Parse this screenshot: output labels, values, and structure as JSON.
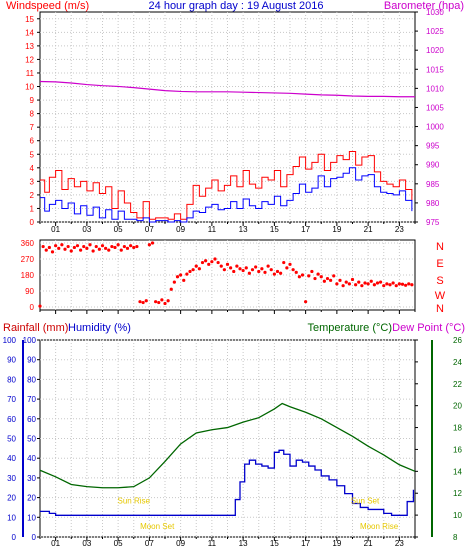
{
  "page_title": "24 hour graph day : 19 August 2016",
  "colors": {
    "windspeed": "#ff0000",
    "windspeed_avg": "#0000ff",
    "barometer": "#cc00cc",
    "direction": "#ff0000",
    "rainfall": "#cc0000",
    "humidity": "#0000cc",
    "temperature": "#006600",
    "dewpoint": "#cc00cc",
    "grid": "#c8c8c8",
    "axis": "#000000",
    "sun_moon": "#e6c800"
  },
  "hour_labels": [
    "01",
    "03",
    "05",
    "07",
    "09",
    "11",
    "13",
    "15",
    "17",
    "19",
    "21",
    "23"
  ],
  "chart_data": [
    {
      "type": "line",
      "title": "24 hour graph day : 19 August 2016",
      "ylabel": "Windspeed (m/s)",
      "y2label": "Barometer (hpa)",
      "x_unit": "hour of day",
      "xlim": [
        0,
        24
      ],
      "ylim": [
        0,
        15.5
      ],
      "y2lim": [
        975,
        1030
      ],
      "y_ticks": [
        0,
        1,
        2,
        3,
        4,
        5,
        6,
        7,
        8,
        9,
        10,
        11,
        12,
        13,
        14,
        15
      ],
      "y2_ticks": [
        975,
        980,
        985,
        990,
        995,
        1000,
        1005,
        1010,
        1015,
        1020,
        1025,
        1030
      ],
      "series": [
        {
          "name": "Windspeed",
          "axis": "left",
          "x": [
            0,
            0.3,
            0.6,
            1,
            1.4,
            1.8,
            2.2,
            2.6,
            3,
            3.4,
            3.8,
            4.2,
            4.6,
            5,
            5.4,
            5.8,
            6.2,
            6.6,
            7,
            7.4,
            7.8,
            8.2,
            8.6,
            9,
            9.4,
            9.8,
            10.2,
            10.6,
            11,
            11.4,
            11.8,
            12.2,
            12.6,
            13,
            13.4,
            13.8,
            14.2,
            14.6,
            15,
            15.4,
            15.8,
            16.2,
            16.6,
            17,
            17.4,
            17.8,
            18.2,
            18.6,
            19,
            19.4,
            19.8,
            20.2,
            20.6,
            21,
            21.4,
            21.8,
            22.2,
            22.6,
            23,
            23.4,
            23.8
          ],
          "values": [
            3.1,
            2.2,
            3.3,
            3.8,
            2.4,
            3.2,
            2.6,
            3.0,
            2.3,
            2.9,
            2.1,
            2.6,
            1.0,
            2.3,
            1.4,
            0.7,
            0.3,
            1.5,
            0.2,
            0.3,
            0.3,
            0.2,
            0.6,
            0.2,
            1.3,
            2.7,
            1.9,
            2.5,
            3.1,
            2.3,
            2.7,
            3.4,
            2.6,
            3.8,
            2.8,
            2.5,
            3.3,
            3.1,
            3.8,
            2.6,
            3.5,
            4.1,
            4.8,
            3.9,
            4.4,
            5.0,
            3.8,
            4.4,
            4.9,
            4.6,
            5.2,
            4.2,
            4.8,
            4.9,
            3.7,
            3.0,
            2.8,
            2.6,
            3.1,
            2.4,
            1.6
          ]
        },
        {
          "name": "Windspeed average",
          "axis": "left",
          "x": [
            0,
            0.3,
            0.6,
            1,
            1.4,
            1.8,
            2.2,
            2.6,
            3,
            3.4,
            3.8,
            4.2,
            4.6,
            5,
            5.4,
            5.8,
            6.2,
            6.6,
            7,
            7.4,
            7.8,
            8.2,
            8.6,
            9,
            9.4,
            9.8,
            10.2,
            10.6,
            11,
            11.4,
            11.8,
            12.2,
            12.6,
            13,
            13.4,
            13.8,
            14.2,
            14.6,
            15,
            15.4,
            15.8,
            16.2,
            16.6,
            17,
            17.4,
            17.8,
            18.2,
            18.6,
            19,
            19.4,
            19.8,
            20.2,
            20.6,
            21,
            21.4,
            21.8,
            22.2,
            22.6,
            23,
            23.4,
            23.8
          ],
          "values": [
            1.8,
            0.8,
            1.3,
            1.6,
            1.0,
            1.4,
            0.6,
            1.2,
            0.5,
            1.1,
            0.3,
            0.9,
            0.2,
            0.8,
            0.2,
            0.2,
            0.1,
            0.3,
            0.0,
            0.1,
            0.1,
            0.0,
            0.1,
            0.0,
            0.3,
            0.8,
            0.7,
            1.1,
            1.3,
            0.9,
            1.0,
            1.5,
            1.0,
            1.7,
            1.2,
            1.0,
            1.5,
            1.3,
            1.9,
            1.2,
            1.6,
            2.1,
            2.8,
            2.2,
            2.5,
            3.4,
            2.6,
            3.2,
            3.3,
            3.6,
            4.0,
            3.1,
            3.4,
            3.5,
            2.6,
            2.2,
            2.1,
            2.0,
            2.3,
            1.6,
            0.8
          ]
        },
        {
          "name": "Barometer",
          "axis": "right",
          "x": [
            0,
            1,
            2,
            3,
            4,
            5,
            6,
            7,
            8,
            9,
            10,
            11,
            12,
            13,
            14,
            15,
            16,
            17,
            18,
            19,
            20,
            21,
            22,
            23,
            24
          ],
          "values": [
            1011.8,
            1011.7,
            1011.4,
            1011.0,
            1010.7,
            1010.5,
            1010.2,
            1009.8,
            1009.4,
            1009.2,
            1009.1,
            1009.1,
            1009.1,
            1009.0,
            1008.9,
            1008.8,
            1008.7,
            1008.5,
            1008.3,
            1008.2,
            1008.0,
            1007.9,
            1007.9,
            1007.8,
            1007.8
          ]
        }
      ]
    },
    {
      "type": "scatter",
      "title": "",
      "ylabel": "",
      "x_unit": "hour of day",
      "xlim": [
        0,
        24
      ],
      "ylim": [
        0,
        360
      ],
      "y_ticks": [
        0,
        90,
        180,
        270,
        360
      ],
      "y2_labels": [
        "N",
        "W",
        "S",
        "E",
        "N"
      ],
      "series": [
        {
          "name": "Wind direction",
          "x": [
            0,
            0.2,
            0.4,
            0.6,
            0.8,
            1,
            1.2,
            1.4,
            1.6,
            1.8,
            2,
            2.2,
            2.4,
            2.6,
            2.8,
            3,
            3.2,
            3.4,
            3.6,
            3.8,
            4,
            4.2,
            4.4,
            4.6,
            4.8,
            5,
            5.2,
            5.4,
            5.6,
            5.8,
            6,
            6.2,
            6.4,
            6.6,
            6.8,
            7,
            7.2,
            7.4,
            7.6,
            7.8,
            8,
            8.2,
            8.4,
            8.6,
            8.8,
            9,
            9.2,
            9.4,
            9.6,
            9.8,
            10,
            10.2,
            10.4,
            10.6,
            10.8,
            11,
            11.2,
            11.4,
            11.6,
            11.8,
            12,
            12.2,
            12.4,
            12.6,
            12.8,
            13,
            13.2,
            13.4,
            13.6,
            13.8,
            14,
            14.2,
            14.4,
            14.6,
            14.8,
            15,
            15.2,
            15.4,
            15.6,
            15.8,
            16,
            16.2,
            16.4,
            16.6,
            16.8,
            17,
            17.2,
            17.4,
            17.6,
            17.8,
            18,
            18.2,
            18.4,
            18.6,
            18.8,
            19,
            19.2,
            19.4,
            19.6,
            19.8,
            20,
            20.2,
            20.4,
            20.6,
            20.8,
            21,
            21.2,
            21.4,
            21.6,
            21.8,
            22,
            22.2,
            22.4,
            22.6,
            22.8,
            23,
            23.2,
            23.4,
            23.6,
            23.8
          ],
          "values": [
            5,
            340,
            320,
            335,
            310,
            345,
            330,
            350,
            325,
            340,
            315,
            335,
            345,
            320,
            340,
            330,
            350,
            315,
            340,
            325,
            345,
            330,
            320,
            340,
            335,
            350,
            320,
            340,
            330,
            345,
            335,
            340,
            30,
            25,
            35,
            350,
            360,
            30,
            25,
            40,
            20,
            35,
            100,
            140,
            170,
            180,
            150,
            185,
            200,
            210,
            230,
            215,
            250,
            260,
            240,
            255,
            270,
            250,
            230,
            210,
            240,
            220,
            200,
            230,
            215,
            205,
            220,
            190,
            210,
            225,
            200,
            215,
            195,
            230,
            210,
            185,
            200,
            190,
            250,
            220,
            240,
            210,
            195,
            170,
            180,
            30,
            175,
            200,
            160,
            185,
            170,
            145,
            160,
            150,
            175,
            130,
            150,
            120,
            140,
            130,
            155,
            125,
            140,
            120,
            135,
            130,
            145,
            125,
            135,
            140,
            120,
            130,
            125,
            135,
            120,
            130,
            128,
            122,
            130,
            125
          ]
        }
      ]
    },
    {
      "type": "line",
      "title": "",
      "ylabel": "Rainfall (mm)",
      "ylabel2": "Humidity (%)",
      "y2label": "Temperature (°C)",
      "y2label2": "Dew Point (°C)",
      "x_unit": "hour of day",
      "xlim": [
        0,
        24
      ],
      "ylim": [
        0,
        100
      ],
      "y2lim": [
        8,
        26
      ],
      "y_ticks": [
        0,
        10,
        20,
        30,
        40,
        50,
        60,
        70,
        80,
        90,
        100
      ],
      "y2_ticks": [
        8,
        10,
        12,
        14,
        16,
        18,
        20,
        22,
        24,
        26
      ],
      "annotations": [
        {
          "text": "Sun Rise",
          "x": 6.0,
          "y": 17
        },
        {
          "text": "Moon Set",
          "x": 7.5,
          "y": 4
        },
        {
          "text": "Sun Set",
          "x": 20.8,
          "y": 17
        },
        {
          "text": "Moon Rise",
          "x": 21.7,
          "y": 4
        }
      ],
      "series": [
        {
          "name": "Humidity",
          "axis": "left",
          "x": [
            0,
            0.3,
            0.6,
            1,
            2,
            3,
            4,
            5,
            6,
            7,
            8,
            9,
            10,
            11,
            12,
            12.2,
            12.5,
            12.8,
            13.1,
            13.4,
            13.8,
            14.2,
            14.6,
            15,
            15.3,
            15.6,
            16,
            16.4,
            16.8,
            17.2,
            17.6,
            18,
            18.5,
            19,
            19.5,
            20,
            20.5,
            21,
            21.5,
            22,
            22.5,
            23,
            23.5,
            23.9
          ],
          "values": [
            13,
            13,
            12,
            11,
            11,
            11,
            11,
            11,
            11,
            11,
            11,
            11,
            11,
            11,
            11,
            11,
            19,
            28,
            37,
            39,
            37,
            36,
            35,
            43,
            44,
            42,
            36,
            39,
            38,
            36,
            34,
            31,
            29,
            26,
            22,
            17,
            15,
            14,
            14,
            12,
            11,
            11,
            18,
            24
          ]
        },
        {
          "name": "Temperature",
          "axis": "right",
          "x": [
            0,
            1,
            2,
            3,
            4,
            5,
            6,
            7,
            8,
            9,
            10,
            11,
            12,
            13,
            14,
            15,
            15.5,
            16,
            17,
            18,
            19,
            20,
            21,
            22,
            23,
            24
          ],
          "values": [
            14.1,
            13.5,
            12.8,
            12.6,
            12.5,
            12.5,
            12.6,
            13.4,
            14.9,
            16.5,
            17.5,
            17.8,
            18.0,
            18.5,
            18.9,
            19.7,
            20.2,
            19.9,
            19.4,
            18.8,
            18.0,
            17.2,
            16.3,
            15.5,
            14.6,
            14.0
          ]
        }
      ]
    }
  ]
}
